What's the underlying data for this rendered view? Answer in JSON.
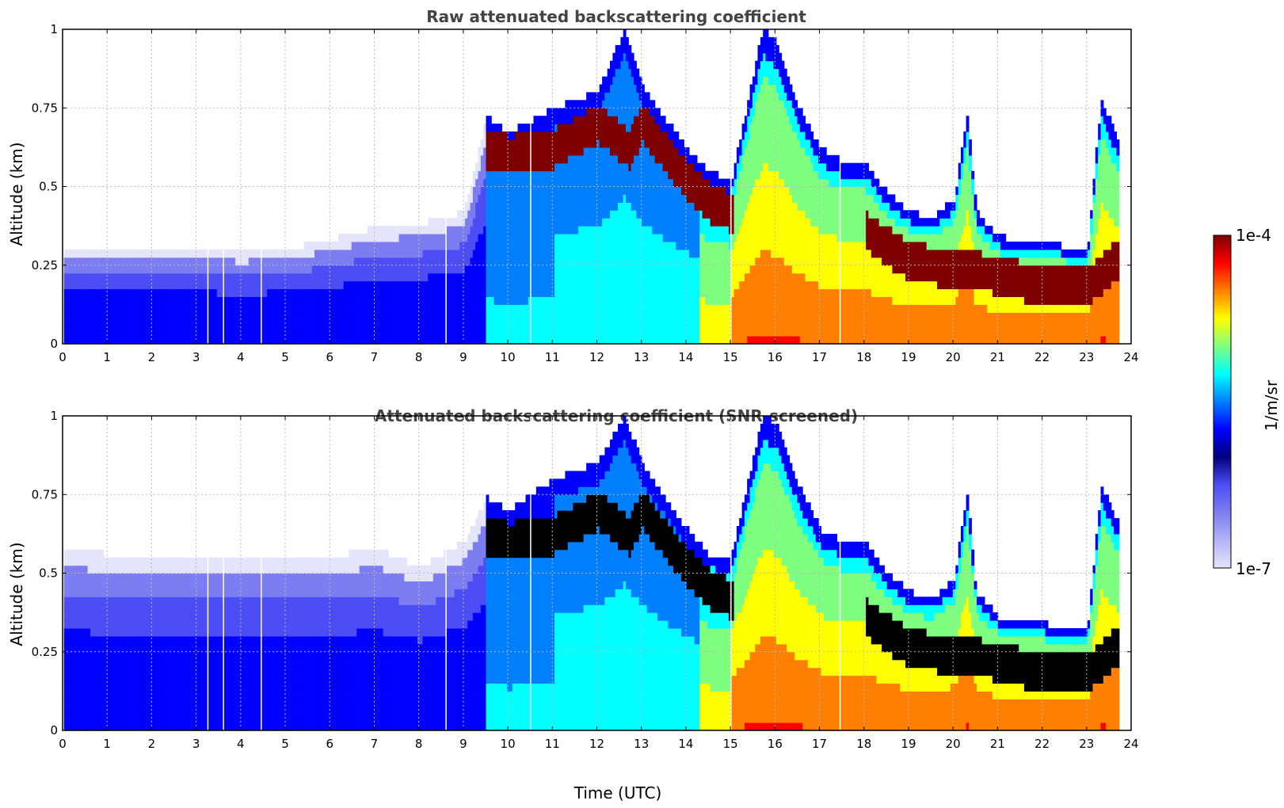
{
  "colors": {
    "jet": [
      "#00007f",
      "#0000ff",
      "#007fff",
      "#00ffff",
      "#7fff7f",
      "#ffff00",
      "#ff7f00",
      "#ff0000",
      "#7f0000"
    ],
    "low_lavender": [
      "#e4e4fa",
      "#b4b4f5",
      "#7d7df2",
      "#4d4df5"
    ],
    "grid": "#bbbbbb",
    "screened_dense": "#000000"
  },
  "chart_data": [
    {
      "type": "heatmap",
      "title": "Raw attenuated backscattering coefficient",
      "xlabel": "",
      "ylabel": "Altitude (km)",
      "xlim": [
        0,
        24
      ],
      "ylim": [
        0,
        1
      ],
      "xticks": [
        "0",
        "1",
        "2",
        "3",
        "4",
        "5",
        "6",
        "7",
        "8",
        "9",
        "10",
        "11",
        "12",
        "13",
        "14",
        "15",
        "16",
        "17",
        "18",
        "19",
        "20",
        "21",
        "22",
        "23",
        "24"
      ],
      "yticks": [
        "0",
        "0.25",
        "0.5",
        "0.75",
        "1"
      ],
      "grid": true,
      "colormap": "jet",
      "log_scale": true,
      "gaps_utc": [
        3.25,
        3.6,
        4.45,
        8.6,
        10.5,
        15.0,
        17.45
      ],
      "layer_top_km": [
        [
          0,
          0.3
        ],
        [
          1,
          0.31
        ],
        [
          2,
          0.3
        ],
        [
          3,
          0.3
        ],
        [
          4,
          0.29
        ],
        [
          5,
          0.3
        ],
        [
          6,
          0.33
        ],
        [
          7,
          0.37
        ],
        [
          8,
          0.38
        ],
        [
          9,
          0.42
        ],
        [
          9.5,
          0.72
        ],
        [
          10,
          0.67
        ],
        [
          11,
          0.75
        ],
        [
          12,
          0.8
        ],
        [
          12.6,
          1.0
        ],
        [
          13,
          0.82
        ],
        [
          14,
          0.62
        ],
        [
          14.5,
          0.55
        ],
        [
          15,
          0.52
        ],
        [
          15.7,
          1.0
        ],
        [
          16,
          0.96
        ],
        [
          16.5,
          0.76
        ],
        [
          17,
          0.62
        ],
        [
          17.5,
          0.58
        ],
        [
          18,
          0.58
        ],
        [
          18.5,
          0.48
        ],
        [
          19,
          0.42
        ],
        [
          19.5,
          0.4
        ],
        [
          20,
          0.46
        ],
        [
          20.3,
          0.74
        ],
        [
          20.5,
          0.42
        ],
        [
          21,
          0.34
        ],
        [
          22,
          0.32
        ],
        [
          23,
          0.3
        ],
        [
          23.3,
          0.78
        ],
        [
          23.7,
          0.64
        ]
      ],
      "dense_layer_km": [
        [
          9.5,
          0.62
        ],
        [
          10,
          0.6
        ],
        [
          11,
          0.62
        ],
        [
          12,
          0.7
        ],
        [
          12.7,
          0.62
        ],
        [
          13,
          0.7
        ],
        [
          14,
          0.52
        ],
        [
          14.6,
          0.44
        ],
        [
          15,
          0.42
        ],
        [
          18,
          0.36
        ],
        [
          19,
          0.26
        ],
        [
          20,
          0.24
        ],
        [
          21,
          0.22
        ],
        [
          22,
          0.18
        ],
        [
          23,
          0.18
        ],
        [
          23.6,
          0.26
        ]
      ]
    },
    {
      "type": "heatmap",
      "title": "Attenuated backscattering coefficient (SNR-screened)",
      "xlabel": "Time (UTC)",
      "ylabel": "Altitude (km)",
      "xlim": [
        0,
        24
      ],
      "ylim": [
        0,
        1
      ],
      "xticks": [
        "0",
        "1",
        "2",
        "3",
        "4",
        "5",
        "6",
        "7",
        "8",
        "9",
        "10",
        "11",
        "12",
        "13",
        "14",
        "15",
        "16",
        "17",
        "18",
        "19",
        "20",
        "21",
        "22",
        "23",
        "24"
      ],
      "yticks": [
        "0",
        "0.25",
        "0.5",
        "0.75",
        "1"
      ],
      "grid": true,
      "colormap": "jet",
      "log_scale": true,
      "gaps_utc": [
        3.25,
        3.6,
        4.45,
        8.6,
        10.5,
        15.0,
        17.45
      ],
      "layer_top_km": [
        [
          0,
          0.58
        ],
        [
          1,
          0.56
        ],
        [
          2,
          0.55
        ],
        [
          3,
          0.56
        ],
        [
          4,
          0.55
        ],
        [
          5,
          0.55
        ],
        [
          6,
          0.55
        ],
        [
          7,
          0.58
        ],
        [
          8,
          0.52
        ],
        [
          9,
          0.6
        ],
        [
          9.5,
          0.74
        ],
        [
          10,
          0.7
        ],
        [
          11,
          0.8
        ],
        [
          12,
          0.85
        ],
        [
          12.6,
          1.0
        ],
        [
          13,
          0.85
        ],
        [
          14,
          0.64
        ],
        [
          14.5,
          0.56
        ],
        [
          15,
          0.55
        ],
        [
          15.7,
          1.0
        ],
        [
          16,
          0.98
        ],
        [
          16.5,
          0.78
        ],
        [
          17,
          0.64
        ],
        [
          17.5,
          0.6
        ],
        [
          18,
          0.6
        ],
        [
          18.5,
          0.5
        ],
        [
          19,
          0.44
        ],
        [
          19.5,
          0.42
        ],
        [
          20,
          0.48
        ],
        [
          20.3,
          0.76
        ],
        [
          20.5,
          0.44
        ],
        [
          21,
          0.36
        ],
        [
          22,
          0.34
        ],
        [
          23,
          0.32
        ],
        [
          23.3,
          0.78
        ],
        [
          23.7,
          0.66
        ]
      ],
      "dense_layer_km": [
        [
          9.5,
          0.62
        ],
        [
          10,
          0.6
        ],
        [
          11,
          0.62
        ],
        [
          12,
          0.7
        ],
        [
          12.7,
          0.62
        ],
        [
          13,
          0.7
        ],
        [
          14,
          0.52
        ],
        [
          14.6,
          0.44
        ],
        [
          15,
          0.42
        ],
        [
          18,
          0.36
        ],
        [
          19,
          0.26
        ],
        [
          20,
          0.24
        ],
        [
          21,
          0.22
        ],
        [
          22,
          0.18
        ],
        [
          23,
          0.18
        ],
        [
          23.6,
          0.26
        ]
      ]
    }
  ],
  "colorbar": {
    "label": "1/m/sr",
    "max_label": "1e-4",
    "min_label": "1e-7"
  }
}
